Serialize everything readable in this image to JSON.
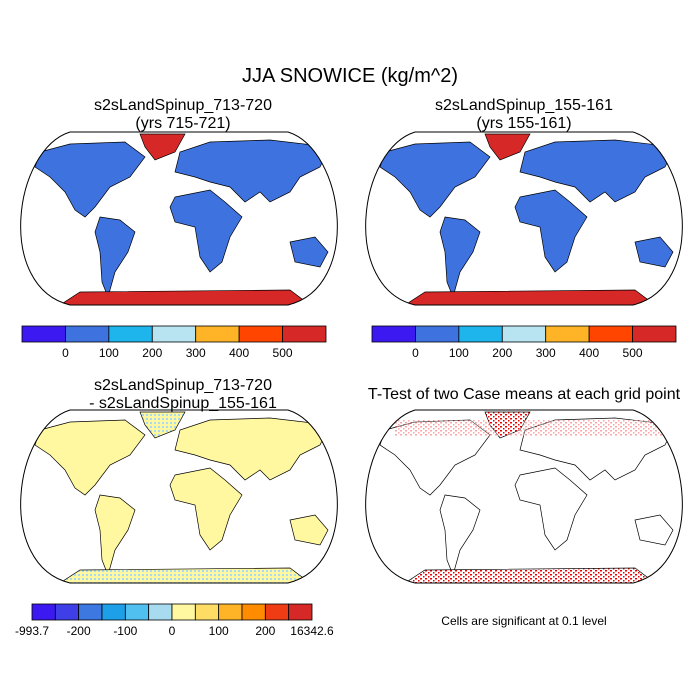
{
  "figure": {
    "title": "JJA SNOWICE (kg/m^2)"
  },
  "panels": [
    {
      "title": [
        "s2sLandSpinup_713-720",
        "(yrs 715-721)"
      ]
    },
    {
      "title": [
        "s2sLandSpinup_155-161",
        "(yrs 155-161)"
      ]
    },
    {
      "title": [
        "s2sLandSpinup_713-720",
        "- s2sLandSpinup_155-161"
      ]
    },
    {
      "title": [
        "T-Test of two Case means at each grid point"
      ]
    }
  ],
  "colorbars": [
    {
      "colors": [
        "#3c19f0",
        "#3e72de",
        "#1eb4ec",
        "#b8e4f2",
        "#ffb428",
        "#ff4500",
        "#d72828"
      ],
      "labels": [
        0,
        100,
        200,
        300,
        400,
        500
      ]
    },
    {
      "colors": [
        "#3c19f0",
        "#3e72de",
        "#1eb4ec",
        "#b8e4f2",
        "#ffb428",
        "#ff4500",
        "#d72828"
      ],
      "labels": [
        0,
        100,
        200,
        300,
        400,
        500
      ]
    },
    {
      "colors": [
        "#3c19f0",
        "#3f3fe8",
        "#3c78e0",
        "#1ea0e8",
        "#50c0f0",
        "#a8daf0",
        "#fff8a0",
        "#ffdc64",
        "#ffb428",
        "#ff8c00",
        "#f03c14",
        "#d72828"
      ],
      "labels": [
        -993.7,
        -200,
        -100,
        0,
        100,
        200,
        16342.6
      ]
    }
  ],
  "note": "Cells are significant at 0.1 level"
}
